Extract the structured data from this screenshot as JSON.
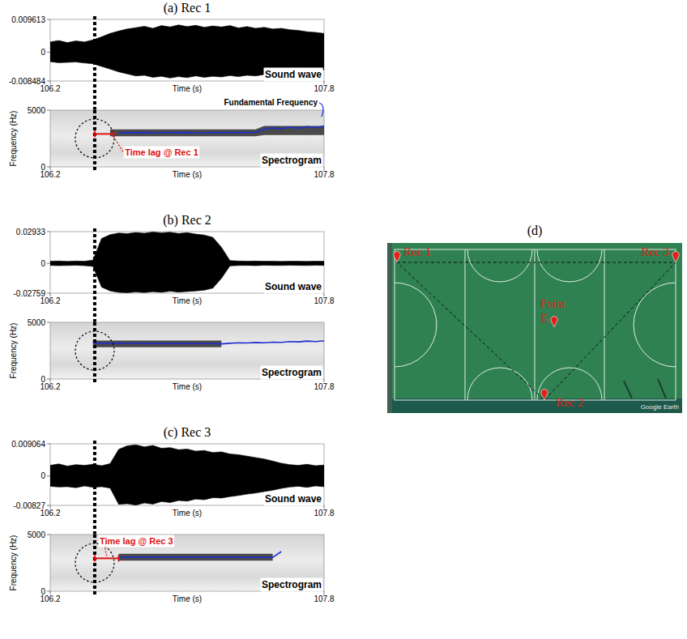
{
  "chart_data": [
    {
      "type": "waveform",
      "title": "(a) Rec 1",
      "xlabel": "Time (s)",
      "annotation": "Sound wave",
      "color": "#000000",
      "x": [
        106.2,
        106.25,
        106.3,
        106.35,
        106.4,
        106.45,
        106.5,
        106.55,
        106.6,
        106.65,
        106.7,
        106.75,
        106.8,
        106.85,
        106.9,
        106.95,
        107.0,
        107.05,
        107.1,
        107.15,
        107.2,
        107.25,
        107.3,
        107.35,
        107.4,
        107.45,
        107.5,
        107.55,
        107.6,
        107.65,
        107.7,
        107.75,
        107.8
      ],
      "envelope_max": [
        0.003,
        0.0034,
        0.0028,
        0.0033,
        0.003,
        0.0036,
        0.0045,
        0.0055,
        0.0062,
        0.0068,
        0.0072,
        0.0076,
        0.007,
        0.0078,
        0.0074,
        0.008,
        0.0075,
        0.0079,
        0.0073,
        0.0077,
        0.0074,
        0.0078,
        0.0071,
        0.0075,
        0.007,
        0.0073,
        0.0068,
        0.007,
        0.0066,
        0.0064,
        0.006,
        0.0058,
        0.0055
      ],
      "envelope_min": [
        -0.0028,
        -0.0031,
        -0.003,
        -0.0029,
        -0.0032,
        -0.0034,
        -0.0042,
        -0.005,
        -0.0058,
        -0.0064,
        -0.007,
        -0.0068,
        -0.0074,
        -0.0071,
        -0.0076,
        -0.0072,
        -0.0075,
        -0.007,
        -0.0074,
        -0.0071,
        -0.0073,
        -0.0069,
        -0.0072,
        -0.0068,
        -0.007,
        -0.0066,
        -0.0068,
        -0.0064,
        -0.0062,
        -0.006,
        -0.0057,
        -0.0054,
        -0.0052
      ],
      "xlim": [
        106.2,
        107.8
      ],
      "xticks": [
        106.2,
        107.8
      ],
      "ylim": [
        -0.008484,
        0.009613
      ],
      "yticks": [
        -0.008484,
        0,
        0.009613
      ],
      "event_time": 106.46
    },
    {
      "type": "spectrogram",
      "xlabel": "Time (s)",
      "ylabel": "Frequency (Hz)",
      "annotation": "Spectrogram",
      "color": "#1f2fd0",
      "f0_label": "Fundamental Frequency",
      "x": [
        106.2,
        106.25,
        106.3,
        106.35,
        106.4,
        106.45,
        106.5,
        106.55,
        106.6,
        106.65,
        106.7,
        106.75,
        106.8,
        106.85,
        106.9,
        106.95,
        107.0,
        107.05,
        107.1,
        107.15,
        107.2,
        107.25,
        107.3,
        107.35,
        107.4,
        107.45,
        107.5,
        107.55,
        107.6,
        107.65,
        107.7,
        107.75,
        107.8
      ],
      "band_low": [
        null,
        null,
        null,
        null,
        null,
        null,
        null,
        2700,
        2700,
        2700,
        2700,
        2700,
        2700,
        2700,
        2700,
        2700,
        2700,
        2700,
        2700,
        2700,
        2700,
        2700,
        2700,
        2700,
        2700,
        2800,
        2800,
        2800,
        2800,
        2800,
        2800,
        2800,
        2800
      ],
      "band_high": [
        null,
        null,
        null,
        null,
        null,
        null,
        null,
        3300,
        3300,
        3300,
        3300,
        3300,
        3300,
        3300,
        3300,
        3300,
        3300,
        3300,
        3300,
        3300,
        3300,
        3300,
        3300,
        3300,
        3300,
        3600,
        3600,
        3600,
        3600,
        3600,
        3600,
        3600,
        3600
      ],
      "f0": [
        null,
        null,
        null,
        null,
        null,
        null,
        null,
        null,
        3000,
        3020,
        3010,
        3030,
        3000,
        3020,
        3040,
        3010,
        3030,
        3000,
        3020,
        3010,
        3030,
        3020,
        3040,
        3030,
        3050,
        3300,
        3450,
        3350,
        3500,
        3400,
        3550,
        3450,
        3600
      ],
      "time_lag": {
        "start": 106.46,
        "end": 106.57,
        "frequency": 2900,
        "label": "Time lag @ Rec 1"
      },
      "xlim": [
        106.2,
        107.8
      ],
      "xticks": [
        106.2,
        107.8
      ],
      "ylim": [
        0,
        5000
      ],
      "yticks": [
        0,
        5000
      ],
      "event_time": 106.46
    },
    {
      "type": "waveform",
      "title": "(b) Rec 2",
      "xlabel": "Time (s)",
      "annotation": "Sound wave",
      "color": "#000000",
      "x": [
        106.2,
        106.25,
        106.3,
        106.35,
        106.4,
        106.45,
        106.5,
        106.55,
        106.6,
        106.65,
        106.7,
        106.75,
        106.8,
        106.85,
        106.9,
        106.95,
        107.0,
        107.05,
        107.1,
        107.15,
        107.2,
        107.25,
        107.3,
        107.35,
        107.4,
        107.45,
        107.5,
        107.55,
        107.6,
        107.65,
        107.7,
        107.75,
        107.8
      ],
      "envelope_max": [
        0.002,
        0.0022,
        0.0018,
        0.0021,
        0.002,
        0.003,
        0.023,
        0.0265,
        0.028,
        0.0275,
        0.0285,
        0.0278,
        0.029,
        0.0282,
        0.0288,
        0.0276,
        0.0284,
        0.027,
        0.0262,
        0.024,
        0.015,
        0.0025,
        0.0022,
        0.002,
        0.0021,
        0.0019,
        0.002,
        0.0018,
        0.002,
        0.0019,
        0.0018,
        0.002,
        0.0019
      ],
      "envelope_min": [
        -0.0019,
        -0.0021,
        -0.002,
        -0.0018,
        -0.0021,
        -0.0028,
        -0.022,
        -0.0255,
        -0.0268,
        -0.0272,
        -0.0265,
        -0.027,
        -0.0262,
        -0.0268,
        -0.0258,
        -0.0266,
        -0.026,
        -0.0255,
        -0.0248,
        -0.023,
        -0.014,
        -0.0024,
        -0.002,
        -0.0019,
        -0.0021,
        -0.0018,
        -0.0019,
        -0.002,
        -0.0018,
        -0.0019,
        -0.002,
        -0.0018,
        -0.0019
      ],
      "xlim": [
        106.2,
        107.8
      ],
      "xticks": [
        106.2,
        107.8
      ],
      "ylim": [
        -0.02759,
        0.02933
      ],
      "yticks": [
        -0.02759,
        0,
        0.02933
      ],
      "event_time": 106.46
    },
    {
      "type": "spectrogram",
      "xlabel": "Time (s)",
      "ylabel": "Frequency (Hz)",
      "annotation": "Spectrogram",
      "color": "#1f2fd0",
      "x": [
        106.2,
        106.25,
        106.3,
        106.35,
        106.4,
        106.45,
        106.5,
        106.55,
        106.6,
        106.65,
        106.7,
        106.75,
        106.8,
        106.85,
        106.9,
        106.95,
        107.0,
        107.05,
        107.1,
        107.15,
        107.2,
        107.25,
        107.3,
        107.35,
        107.4,
        107.45,
        107.5,
        107.55,
        107.6,
        107.65,
        107.7,
        107.75,
        107.8
      ],
      "band_low": [
        null,
        null,
        null,
        null,
        null,
        2800,
        2800,
        2800,
        2800,
        2800,
        2800,
        2800,
        2800,
        2800,
        2800,
        2800,
        2800,
        2800,
        2800,
        2800,
        2800,
        null,
        null,
        null,
        null,
        null,
        null,
        null,
        null,
        null,
        null,
        null,
        null
      ],
      "band_high": [
        null,
        null,
        null,
        null,
        null,
        3400,
        3400,
        3400,
        3400,
        3400,
        3400,
        3400,
        3400,
        3400,
        3400,
        3400,
        3400,
        3400,
        3400,
        3400,
        3400,
        null,
        null,
        null,
        null,
        null,
        null,
        null,
        null,
        null,
        null,
        null,
        null
      ],
      "f0": [
        null,
        null,
        null,
        null,
        null,
        3150,
        3150,
        3140,
        3150,
        3130,
        3140,
        3150,
        3130,
        3140,
        3120,
        3130,
        3140,
        3120,
        3130,
        3120,
        3100,
        3150,
        3200,
        3180,
        3220,
        3200,
        3250,
        3230,
        3300,
        3280,
        3350,
        3300,
        3380
      ],
      "xlim": [
        106.2,
        107.8
      ],
      "xticks": [
        106.2,
        107.8
      ],
      "ylim": [
        0,
        5000
      ],
      "yticks": [
        0,
        5000
      ],
      "event_time": 106.46
    },
    {
      "type": "waveform",
      "title": "(c) Rec 3",
      "xlabel": "Time (s)",
      "annotation": "Sound wave",
      "color": "#000000",
      "x": [
        106.2,
        106.25,
        106.3,
        106.35,
        106.4,
        106.45,
        106.5,
        106.55,
        106.6,
        106.65,
        106.7,
        106.75,
        106.8,
        106.85,
        106.9,
        106.95,
        107.0,
        107.05,
        107.1,
        107.15,
        107.2,
        107.25,
        107.3,
        107.35,
        107.4,
        107.45,
        107.5,
        107.55,
        107.6,
        107.65,
        107.7,
        107.75,
        107.8
      ],
      "envelope_max": [
        0.003,
        0.0034,
        0.0028,
        0.0032,
        0.003,
        0.0033,
        0.0029,
        0.0035,
        0.0075,
        0.0085,
        0.0088,
        0.0082,
        0.0086,
        0.0078,
        0.008,
        0.0074,
        0.0076,
        0.007,
        0.0072,
        0.0066,
        0.0068,
        0.0062,
        0.006,
        0.0056,
        0.0052,
        0.0048,
        0.0042,
        0.0036,
        0.0032,
        0.003,
        0.0033,
        0.0029,
        0.0031
      ],
      "envelope_min": [
        -0.0029,
        -0.0031,
        -0.003,
        -0.0033,
        -0.0028,
        -0.0032,
        -0.003,
        -0.0034,
        -0.008,
        -0.0078,
        -0.0082,
        -0.0076,
        -0.0079,
        -0.0072,
        -0.0075,
        -0.0069,
        -0.0071,
        -0.0065,
        -0.0067,
        -0.0061,
        -0.0062,
        -0.0058,
        -0.0055,
        -0.0051,
        -0.0048,
        -0.0044,
        -0.004,
        -0.0035,
        -0.0031,
        -0.0029,
        -0.0032,
        -0.0028,
        -0.003
      ],
      "xlim": [
        106.2,
        107.8
      ],
      "xticks": [
        106.2,
        107.8
      ],
      "ylim": [
        -0.00827,
        0.009064
      ],
      "yticks": [
        -0.00827,
        0,
        0.009064
      ],
      "event_time": 106.46
    },
    {
      "type": "spectrogram",
      "xlabel": "Time (s)",
      "ylabel": "Frequency (Hz)",
      "annotation": "Spectrogram",
      "color": "#1f2fd0",
      "x": [
        106.2,
        106.25,
        106.3,
        106.35,
        106.4,
        106.45,
        106.5,
        106.55,
        106.6,
        106.65,
        106.7,
        106.75,
        106.8,
        106.85,
        106.9,
        106.95,
        107.0,
        107.05,
        107.1,
        107.15,
        107.2,
        107.25,
        107.3,
        107.35,
        107.4,
        107.45,
        107.5,
        107.55,
        107.6,
        107.65,
        107.7,
        107.75,
        107.8
      ],
      "band_low": [
        null,
        null,
        null,
        null,
        null,
        null,
        null,
        null,
        2700,
        2700,
        2700,
        2700,
        2700,
        2700,
        2700,
        2700,
        2700,
        2700,
        2700,
        2700,
        2700,
        2700,
        2700,
        2700,
        2700,
        2700,
        2700,
        null,
        null,
        null,
        null,
        null,
        null
      ],
      "band_high": [
        null,
        null,
        null,
        null,
        null,
        null,
        null,
        null,
        3300,
        3300,
        3300,
        3300,
        3300,
        3300,
        3300,
        3300,
        3300,
        3300,
        3300,
        3300,
        3300,
        3300,
        3300,
        3300,
        3300,
        3300,
        3300,
        null,
        null,
        null,
        null,
        null,
        null
      ],
      "f0": [
        null,
        null,
        null,
        null,
        null,
        null,
        null,
        null,
        3000,
        2990,
        3010,
        3000,
        2990,
        3010,
        3000,
        3020,
        2990,
        3000,
        3010,
        2990,
        3000,
        3010,
        2990,
        3000,
        2990,
        3000,
        2980,
        3500,
        null,
        null,
        null,
        null,
        null
      ],
      "time_lag": {
        "start": 106.46,
        "end": 106.6,
        "frequency": 2900,
        "label": "Time lag @ Rec 3"
      },
      "xlim": [
        106.2,
        107.8
      ],
      "xticks": [
        106.2,
        107.8
      ],
      "ylim": [
        0,
        5000
      ],
      "yticks": [
        0,
        5000
      ],
      "event_time": 106.46
    }
  ],
  "map": {
    "title": "(d)",
    "labels": {
      "rec1": "Rec 1",
      "rec3": "Rec 3",
      "rec2": "Rec 2",
      "point": "Point E"
    },
    "credit": "Google Earth"
  }
}
